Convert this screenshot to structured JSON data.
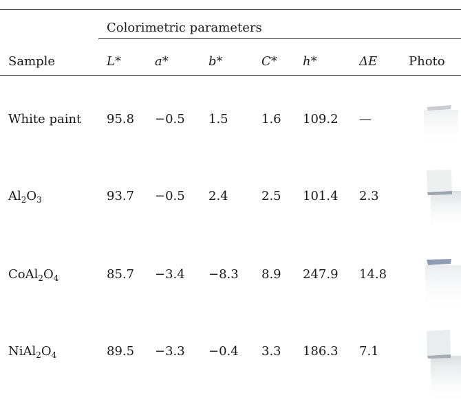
{
  "table": {
    "group_header": "Colorimetric parameters",
    "columns": {
      "sample": "Sample",
      "L": "L*",
      "a": "a*",
      "b": "b*",
      "C": "C*",
      "h": "h*",
      "dE": "ΔE",
      "photo": "Photo"
    },
    "rows": [
      {
        "sample": "White paint",
        "L": "95.8",
        "a": "−0.5",
        "b": "1.5",
        "C": "1.6",
        "h": "109.2",
        "dE": "—"
      },
      {
        "sample_parts": [
          "Al",
          "2",
          "O",
          "3"
        ],
        "L": "93.7",
        "a": "−0.5",
        "b": "2.4",
        "C": "2.5",
        "h": "101.4",
        "dE": "2.3"
      },
      {
        "sample_parts": [
          "CoAl",
          "2",
          "O",
          "4"
        ],
        "L": "85.7",
        "a": "−3.4",
        "b": "−8.3",
        "C": "8.9",
        "h": "247.9",
        "dE": "14.8"
      },
      {
        "sample_parts": [
          "NiAl",
          "2",
          "O",
          "4"
        ],
        "L": "89.5",
        "a": "−3.3",
        "b": "−0.4",
        "C": "3.3",
        "h": "186.3",
        "dE": "7.1"
      }
    ],
    "photo_swatch_colors": [
      "#c9ccd0",
      "#eef0f0",
      "#8f9cb6",
      "#e9edee"
    ]
  }
}
